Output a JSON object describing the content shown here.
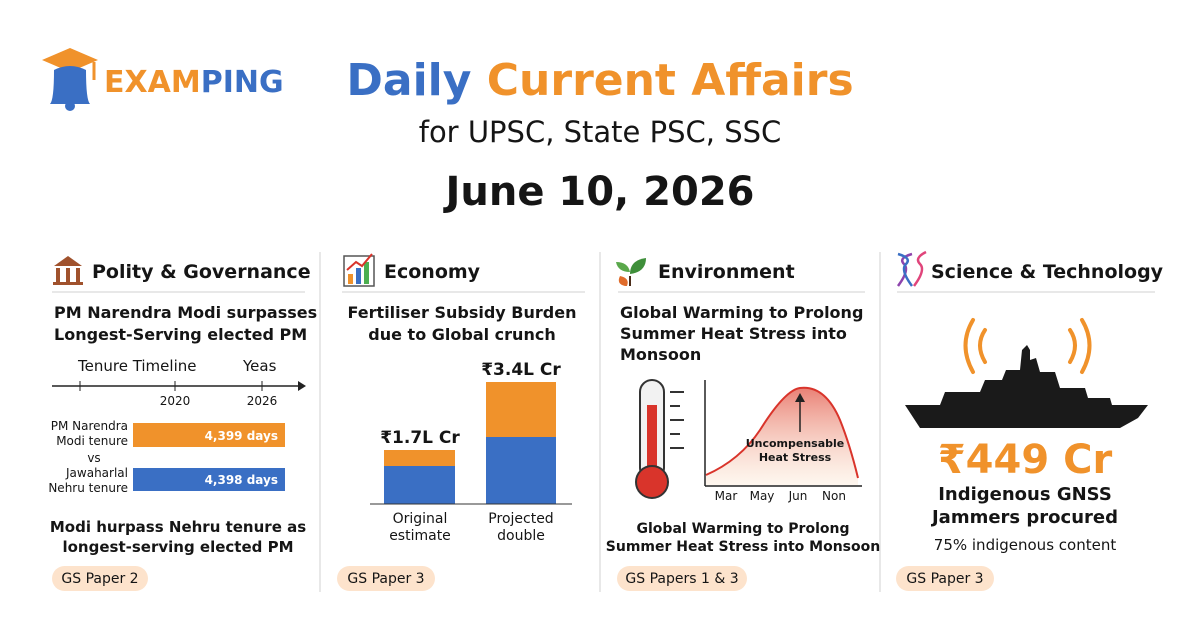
{
  "header": {
    "brand_part1": "EXAM",
    "brand_part2": "PING",
    "title_part1": "Daily",
    "title_part2": "Current Affairs",
    "subtitle": "for UPSC, State PSC, SSC",
    "date": "June 10, 2026"
  },
  "panels": [
    {
      "section": "Polity & Governance",
      "headline": [
        "PM Narendra Modi surpasses",
        "Longest-Serving elected PM"
      ],
      "timeline": {
        "label": "Tenure Timeline",
        "end_label": "Yeas",
        "ticks": [
          "2020",
          "2026"
        ]
      },
      "bars": [
        {
          "label": [
            "PM Narendra",
            "Modi tenure"
          ],
          "value_label": "4,399 days"
        },
        {
          "label": [
            "Jawaharlal",
            "Nehru tenure"
          ],
          "value_label": "4,398 days"
        }
      ],
      "vs": "vs",
      "caption": [
        "Modi hurpass Nehru tenure as",
        "longest-serving elected PM"
      ],
      "tag": "GS Paper 2"
    },
    {
      "section": "Economy",
      "headline": [
        "Fertiliser Subsidy Burden",
        "due to Global crunch"
      ],
      "bars": [
        {
          "value_label": "₹1.7L Cr",
          "label": [
            "Original",
            "estimate"
          ]
        },
        {
          "value_label": "₹3.4L Cr",
          "label": [
            "Projected",
            "double"
          ]
        }
      ],
      "tag": "GS Paper 3"
    },
    {
      "section": "Environment",
      "headline": [
        "Global Warming to Prolong",
        "Summer Heat Stress into",
        "Monsoon"
      ],
      "annotation": [
        "Uncompensable",
        "Heat Stress"
      ],
      "months": [
        "Mar",
        "May",
        "Jun",
        "Non"
      ],
      "caption": [
        "Global Warming to Prolong",
        "Summer Heat Stress into Monsoon"
      ],
      "tag": "GS Papers 1 & 3"
    },
    {
      "section": "Science & Technology",
      "amount": "₹449 Cr",
      "headline": [
        "Indigenous GNSS",
        "Jammers procured"
      ],
      "detail": "75% indigenous content",
      "tag": "GS Paper 3"
    }
  ]
}
